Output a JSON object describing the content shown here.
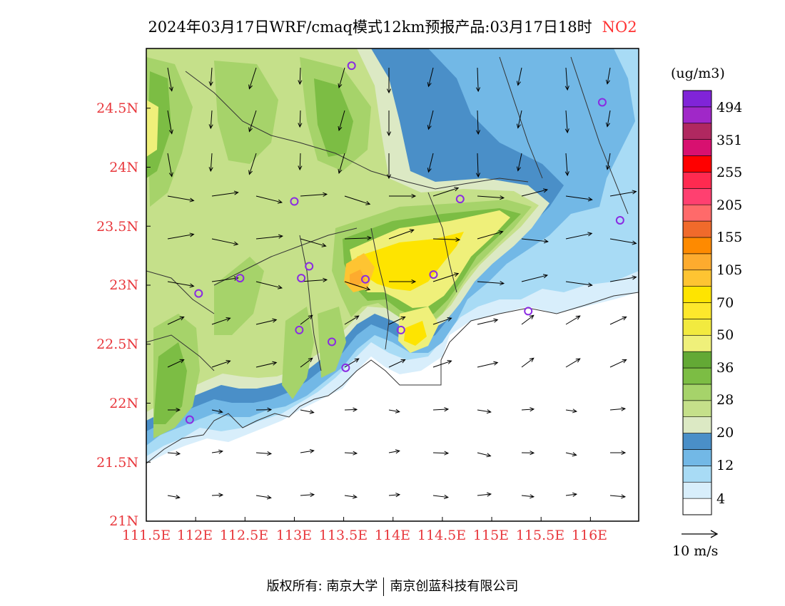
{
  "title": {
    "main": "2024年03月17日WRF/cmaq模式12km预报产品:03月17日18时",
    "species": "NO2"
  },
  "map": {
    "lat_ticks": [
      "24.5N",
      "24N",
      "23.5N",
      "23N",
      "22.5N",
      "22N",
      "21.5N",
      "21N"
    ],
    "lon_ticks": [
      "111.5E",
      "112E",
      "112.5E",
      "113E",
      "113.5E",
      "114E",
      "114.5E",
      "115E",
      "115.5E",
      "116E"
    ],
    "colors": {
      "axis_label": "#e8383d",
      "station_marker": "#8a2be2"
    },
    "stations": [
      {
        "lon": 113.58,
        "lat": 24.86
      },
      {
        "lon": 116.12,
        "lat": 24.55
      },
      {
        "lon": 113.0,
        "lat": 23.71
      },
      {
        "lon": 114.68,
        "lat": 23.73
      },
      {
        "lon": 116.3,
        "lat": 23.55
      },
      {
        "lon": 112.45,
        "lat": 23.06
      },
      {
        "lon": 113.07,
        "lat": 23.06
      },
      {
        "lon": 113.15,
        "lat": 23.16
      },
      {
        "lon": 113.72,
        "lat": 23.05
      },
      {
        "lon": 114.41,
        "lat": 23.09
      },
      {
        "lon": 112.03,
        "lat": 22.93
      },
      {
        "lon": 115.37,
        "lat": 22.78
      },
      {
        "lon": 113.05,
        "lat": 22.62
      },
      {
        "lon": 113.38,
        "lat": 22.52
      },
      {
        "lon": 114.08,
        "lat": 22.62
      },
      {
        "lon": 113.52,
        "lat": 22.3
      },
      {
        "lon": 111.94,
        "lat": 21.86
      }
    ]
  },
  "colorbar": {
    "units": "(ug/m3)",
    "labels": [
      "494",
      "351",
      "255",
      "205",
      "155",
      "105",
      "70",
      "50",
      "36",
      "28",
      "20",
      "12",
      "4"
    ],
    "colors": [
      "#ffffff",
      "#d8eefb",
      "#a8dbf5",
      "#72b8e6",
      "#4a8fc8",
      "#dce9c4",
      "#c5e08a",
      "#a6d36a",
      "#7cbd44",
      "#63a935",
      "#eff07a",
      "#f2ea3f",
      "#fde82c",
      "#fee400",
      "#fec432",
      "#fdab2e",
      "#fe8a00",
      "#f06a2b",
      "#ff6a6a",
      "#ff4070",
      "#ff2a50",
      "#ff0000",
      "#d81070",
      "#b02860",
      "#a028c8",
      "#8024d8"
    ]
  },
  "wind_reference": {
    "label": "10 m/s"
  },
  "footer": {
    "left": "版权所有: 南京大学",
    "right": "南京创蓝科技有限公司"
  }
}
